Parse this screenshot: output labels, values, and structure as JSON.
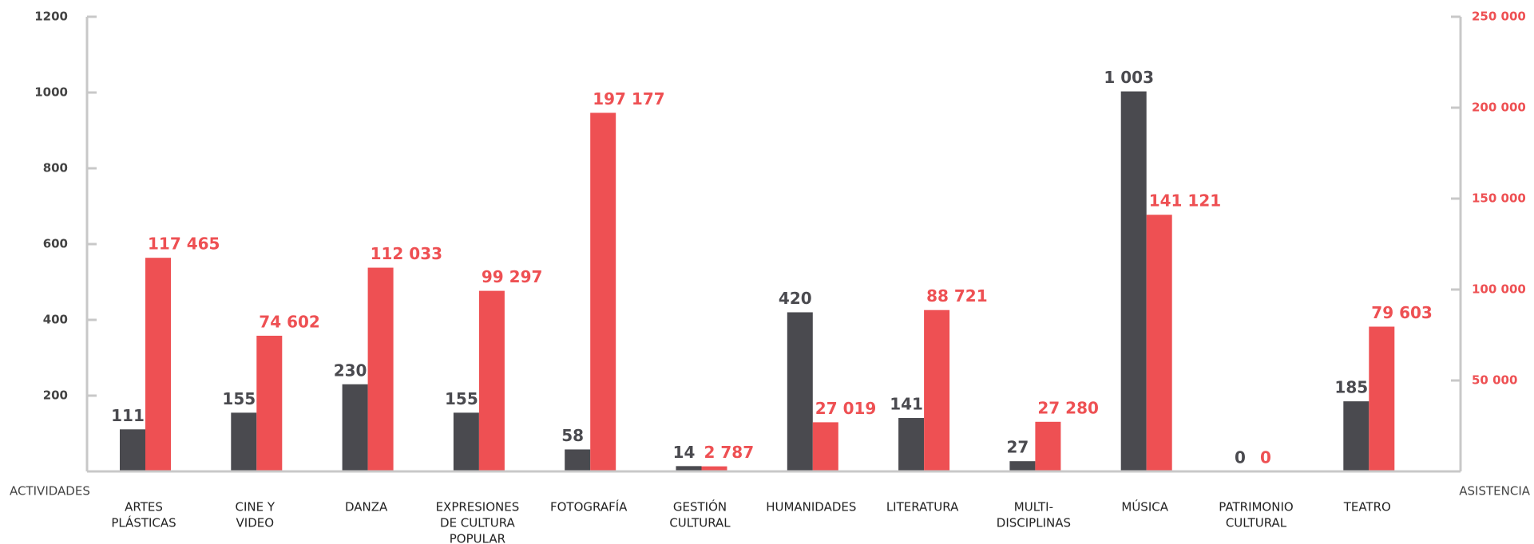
{
  "chart_data": {
    "type": "bar",
    "categories": [
      [
        "ARTES",
        "PLÁSTICAS"
      ],
      [
        "CINE Y",
        "VIDEO"
      ],
      [
        "DANZA"
      ],
      [
        "EXPRESIONES",
        "DE CULTURA",
        "POPULAR"
      ],
      [
        "FOTOGRAFÍA"
      ],
      [
        "GESTIÓN",
        "CULTURAL"
      ],
      [
        "HUMANIDADES"
      ],
      [
        "LITERATURA"
      ],
      [
        "MULTI-",
        "DISCIPLINAS"
      ],
      [
        "MÚSICA"
      ],
      [
        "PATRIMONIO",
        "CULTURAL"
      ],
      [
        "TEATRO"
      ]
    ],
    "x_label": "ACTIVIDADES",
    "y2_label": "ASISTENCIA",
    "series": [
      {
        "color": "#4a4a4f",
        "values": [
          111,
          155,
          230,
          155,
          58,
          14,
          420,
          141,
          27,
          1003,
          0,
          185
        ],
        "value_labels": [
          "111",
          "155",
          "230",
          "155",
          "58",
          "14",
          "420",
          "141",
          "27",
          "1 003",
          "0",
          "185"
        ]
      },
      {
        "color": "#ee5053",
        "axis": "y2",
        "values": [
          117465,
          74602,
          112033,
          99297,
          197177,
          2787,
          27019,
          88721,
          27280,
          141121,
          0,
          79603
        ],
        "value_labels": [
          "117 465",
          "74 602",
          "112 033",
          "99 297",
          "197 177",
          "2 787",
          "27 019",
          "88 721",
          "27 280",
          "141 121",
          "0",
          "79 603"
        ]
      }
    ],
    "ylim": [
      0,
      1200
    ],
    "yticks": [
      200,
      400,
      600,
      800,
      1000,
      1200
    ],
    "y2lim": [
      0,
      250000
    ],
    "y2ticks": [
      {
        "value": 50000,
        "label": "50 000"
      },
      {
        "value": 100000,
        "label": "100 000"
      },
      {
        "value": 150000,
        "label": "150 000"
      },
      {
        "value": 200000,
        "label": "200 000"
      },
      {
        "value": 250000,
        "label": "250 000"
      }
    ]
  }
}
